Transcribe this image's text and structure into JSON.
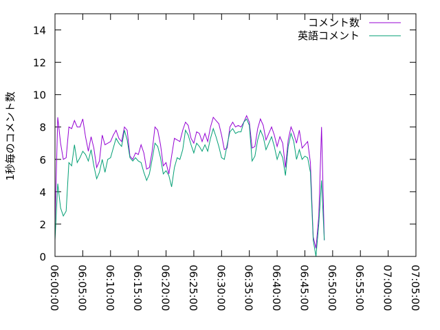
{
  "chart_data": {
    "type": "line",
    "title": "",
    "xlabel": "",
    "ylabel": "1秒毎のコメント数",
    "xlim": [
      "06:00:00",
      "07:05:00"
    ],
    "ylim": [
      0,
      15
    ],
    "y_ticks": [
      "0",
      "2",
      "4",
      "6",
      "8",
      "10",
      "12",
      "14"
    ],
    "x_ticks": [
      "06:00:00",
      "06:05:00",
      "06:10:00",
      "06:15:00",
      "06:20:00",
      "06:25:00",
      "06:30:00",
      "06:35:00",
      "06:40:00",
      "06:45:00",
      "06:50:00",
      "06:55:00",
      "07:00:00",
      "07:05:00"
    ],
    "grid": false,
    "legend_position": "top-right",
    "x_step_seconds": 30,
    "x_start": "06:00:00",
    "series": [
      {
        "name": "コメント数",
        "color": "#9400d3",
        "values": [
          2.0,
          8.6,
          7.0,
          6.0,
          6.1,
          8.0,
          7.9,
          8.4,
          8.0,
          8.0,
          8.5,
          7.4,
          6.5,
          7.4,
          6.7,
          5.5,
          5.9,
          7.5,
          6.9,
          7.0,
          7.1,
          7.5,
          7.8,
          7.3,
          7.1,
          8.0,
          7.8,
          6.2,
          6.0,
          6.4,
          6.3,
          6.9,
          6.4,
          5.4,
          5.5,
          6.5,
          8.0,
          7.8,
          6.9,
          5.6,
          5.8,
          5.1,
          6.2,
          7.3,
          7.2,
          7.1,
          7.8,
          8.3,
          8.1,
          7.3,
          7.0,
          7.7,
          7.6,
          7.1,
          7.6,
          7.1,
          8.0,
          8.6,
          8.4,
          8.2,
          7.5,
          6.6,
          6.7,
          8.0,
          8.3,
          8.0,
          8.1,
          8.0,
          8.3,
          8.7,
          8.3,
          6.7,
          6.8,
          7.9,
          8.5,
          8.1,
          7.2,
          7.6,
          8.0,
          7.5,
          6.8,
          7.4,
          7.0,
          5.5,
          7.2,
          8.0,
          7.6,
          7.0,
          7.8,
          6.7,
          6.9,
          7.1,
          5.8,
          1.2,
          0.5,
          2.5,
          8.0,
          1.0
        ]
      },
      {
        "name": "英語コメント",
        "color": "#009e73",
        "values": [
          1.0,
          4.5,
          3.0,
          2.5,
          2.8,
          5.8,
          5.6,
          6.9,
          5.8,
          6.1,
          6.5,
          6.3,
          5.9,
          6.6,
          5.6,
          4.8,
          5.2,
          6.0,
          5.2,
          6.0,
          6.1,
          6.7,
          7.3,
          7.0,
          6.8,
          7.8,
          7.2,
          6.1,
          5.9,
          6.1,
          5.9,
          5.8,
          5.2,
          4.7,
          5.1,
          6.0,
          7.0,
          6.8,
          6.1,
          5.1,
          5.3,
          5.0,
          4.3,
          5.5,
          6.1,
          6.0,
          6.6,
          7.8,
          7.5,
          6.9,
          6.4,
          7.0,
          6.8,
          6.5,
          6.9,
          6.5,
          7.3,
          7.9,
          7.4,
          6.8,
          6.1,
          6.0,
          6.9,
          7.7,
          7.9,
          7.6,
          7.7,
          7.7,
          8.3,
          8.5,
          8.1,
          5.9,
          6.2,
          7.2,
          7.8,
          7.4,
          6.6,
          7.0,
          7.4,
          6.8,
          6.0,
          6.5,
          6.1,
          5.0,
          6.8,
          7.6,
          7.1,
          6.0,
          6.6,
          6.0,
          6.2,
          6.1,
          5.2,
          1.0,
          0.0,
          2.0,
          4.7,
          1.0
        ]
      }
    ]
  }
}
